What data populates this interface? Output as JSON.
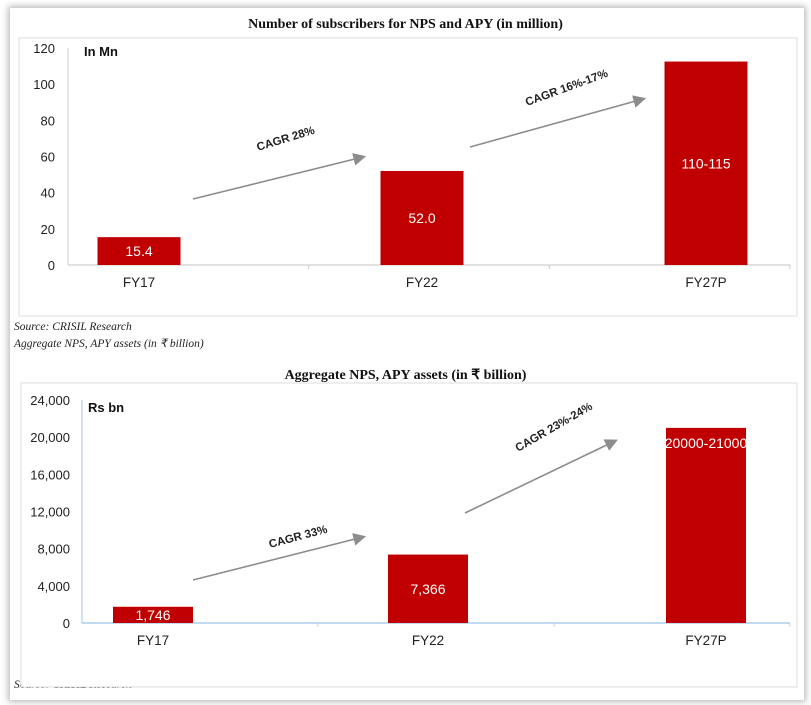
{
  "sources": {
    "source1": "Source: CRISIL Research",
    "caption2": "Aggregate NPS, APY assets (in ₹ billion)",
    "source2": "Source: CRISIL Research"
  },
  "colors": {
    "bar": "#c00000",
    "arrow": "#8c8c8c",
    "axis": "#9dc3e6"
  },
  "chart_data": [
    {
      "type": "bar",
      "title": "Number of subscribers for NPS and APY (in million)",
      "unit_label": "In Mn",
      "categories": [
        "FY17",
        "FY22",
        "FY27P"
      ],
      "values": [
        15.4,
        52.0,
        112.5
      ],
      "data_labels": [
        "15.4",
        "52.0",
        "110-115"
      ],
      "ylim": [
        0,
        120
      ],
      "yticks": [
        0,
        20,
        40,
        60,
        80,
        100,
        120
      ],
      "ytick_labels": [
        "0",
        "20",
        "40",
        "60",
        "80",
        "100",
        "120"
      ],
      "annotations": [
        "CAGR 28%",
        "CAGR 16%-17%"
      ]
    },
    {
      "type": "bar",
      "title": "Aggregate NPS, APY assets (in ₹ billion)",
      "unit_label": "Rs bn",
      "categories": [
        "FY17",
        "FY22",
        "FY27P"
      ],
      "values": [
        1746,
        7366,
        21000
      ],
      "data_labels": [
        "1,746",
        "7,366",
        "20000-21000"
      ],
      "ylim": [
        0,
        24000
      ],
      "yticks": [
        0,
        4000,
        8000,
        12000,
        16000,
        20000,
        24000
      ],
      "ytick_labels": [
        "0",
        "4,000",
        "8,000",
        "12,000",
        "16,000",
        "20,000",
        "24,000"
      ],
      "annotations": [
        "CAGR 33%",
        "CAGR 23%-24%"
      ]
    }
  ]
}
